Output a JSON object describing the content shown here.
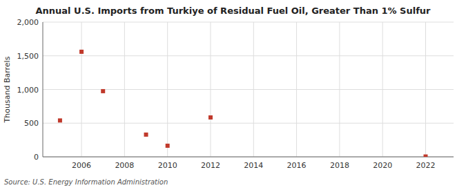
{
  "chart_data": {
    "type": "scatter",
    "title": "Annual U.S. Imports from Turkiye of Residual Fuel Oil, Greater Than 1% Sulfur",
    "y_label": "Thousand Barrels",
    "source": "Source: U.S. Energy Information Administration",
    "x": [
      2005,
      2006,
      2007,
      2009,
      2010,
      2012,
      2022
    ],
    "values": [
      540,
      1560,
      975,
      330,
      165,
      585,
      5
    ],
    "color": "#c0392b",
    "marker": "square",
    "xlim": [
      2004.2,
      2023.3
    ],
    "ylim": [
      0,
      2000
    ],
    "xticks": [
      2006,
      2008,
      2010,
      2012,
      2014,
      2016,
      2018,
      2020,
      2022
    ],
    "yticks": [
      0,
      500,
      {
        "value": 1000,
        "label": "1,000"
      },
      {
        "value": 1500,
        "label": "1,500"
      },
      {
        "value": 2000,
        "label": "2,000"
      }
    ],
    "grid": true
  }
}
